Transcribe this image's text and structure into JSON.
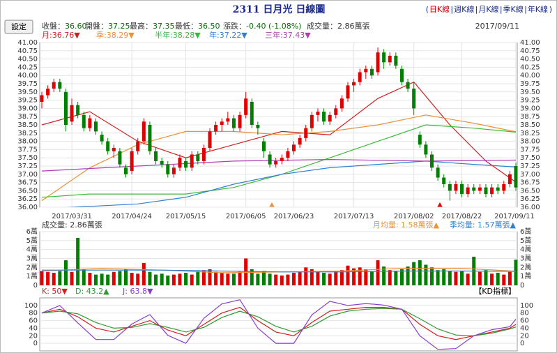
{
  "header": {
    "title": "2311 日月光 日線圖",
    "links": [
      "日K線",
      "週K線",
      "月K線",
      "季K線",
      "年K線"
    ],
    "button": "設定",
    "quote": [
      {
        "label": "收盤：",
        "value": "36.60"
      },
      {
        "label": "開盤：",
        "value": "37.25"
      },
      {
        "label": "最高：",
        "value": "37.35"
      },
      {
        "label": "最低：",
        "value": "36.50"
      },
      {
        "label": "漲跌：",
        "value": "-0.40 (-1.08%)"
      },
      {
        "label": "成交量：",
        "value": "2.86萬張"
      }
    ],
    "date": "2017/09/11"
  },
  "chart_data": [
    {
      "type": "candlestick",
      "up_color": "#e00000",
      "down_color": "#008000",
      "grid": true,
      "categories": [
        null,
        null,
        null,
        null,
        null,
        "2017/03/31",
        null,
        null,
        null,
        null,
        null,
        null,
        null,
        null,
        null,
        "2017/04/24",
        null,
        null,
        null,
        null,
        null,
        null,
        null,
        null,
        "2017/05/15",
        null,
        null,
        null,
        null,
        null,
        null,
        null,
        null,
        null,
        "2017/06/05",
        null,
        null,
        null,
        null,
        null,
        null,
        null,
        "2017/06/23",
        null,
        null,
        null,
        null,
        null,
        null,
        null,
        null,
        null,
        "2017/07/13",
        null,
        null,
        null,
        null,
        null,
        null,
        null,
        null,
        null,
        "2017/08/02",
        null,
        null,
        null,
        null,
        null,
        null,
        null,
        "2017/08/22",
        null,
        null,
        null,
        null,
        null,
        null,
        null,
        null,
        "2017/09/11"
      ],
      "candles": [
        [
          39.2,
          39.5,
          39.0,
          39.4
        ],
        [
          39.4,
          39.7,
          39.3,
          39.6
        ],
        [
          39.6,
          39.9,
          39.5,
          39.8
        ],
        [
          39.8,
          39.9,
          39.5,
          39.6
        ],
        [
          39.5,
          39.6,
          38.3,
          38.5
        ],
        [
          38.6,
          39.3,
          38.5,
          39.1
        ],
        [
          39.1,
          39.2,
          38.7,
          38.8
        ],
        [
          38.8,
          38.9,
          38.3,
          38.4
        ],
        [
          38.4,
          38.8,
          38.3,
          38.7
        ],
        [
          38.6,
          38.7,
          38.2,
          38.3
        ],
        [
          38.2,
          38.3,
          37.9,
          38.0
        ],
        [
          38.0,
          38.1,
          37.6,
          37.7
        ],
        [
          37.7,
          37.9,
          37.5,
          37.8
        ],
        [
          37.7,
          37.8,
          37.2,
          37.3
        ],
        [
          37.2,
          37.3,
          36.9,
          37.0
        ],
        [
          37.1,
          37.8,
          37.0,
          37.7
        ],
        [
          37.7,
          38.1,
          37.6,
          38.0
        ],
        [
          38.0,
          38.7,
          37.9,
          38.6
        ],
        [
          38.5,
          38.6,
          37.6,
          37.7
        ],
        [
          37.7,
          37.8,
          37.3,
          37.4
        ],
        [
          37.4,
          37.5,
          37.2,
          37.3
        ],
        [
          37.3,
          37.4,
          36.9,
          37.0
        ],
        [
          37.0,
          37.3,
          36.9,
          37.2
        ],
        [
          37.2,
          37.6,
          37.1,
          37.5
        ],
        [
          37.4,
          37.5,
          37.1,
          37.2
        ],
        [
          37.2,
          37.7,
          37.1,
          37.6
        ],
        [
          37.6,
          37.7,
          37.3,
          37.4
        ],
        [
          37.4,
          37.9,
          37.3,
          37.8
        ],
        [
          37.8,
          38.4,
          37.7,
          38.3
        ],
        [
          38.3,
          38.6,
          38.2,
          38.5
        ],
        [
          38.5,
          38.7,
          38.3,
          38.6
        ],
        [
          38.6,
          38.9,
          38.5,
          38.7
        ],
        [
          38.7,
          38.8,
          38.3,
          38.4
        ],
        [
          38.4,
          38.9,
          38.3,
          38.8
        ],
        [
          38.8,
          39.5,
          38.7,
          39.3
        ],
        [
          39.2,
          39.3,
          38.4,
          38.5
        ],
        [
          38.5,
          38.6,
          38.2,
          38.4
        ],
        [
          38.0,
          38.1,
          37.5,
          37.7
        ],
        [
          37.6,
          37.7,
          37.2,
          37.3
        ],
        [
          37.3,
          37.5,
          37.2,
          37.4
        ],
        [
          37.4,
          37.6,
          37.3,
          37.5
        ],
        [
          37.5,
          37.8,
          37.4,
          37.7
        ],
        [
          37.7,
          38.0,
          37.6,
          37.9
        ],
        [
          37.9,
          38.2,
          37.8,
          38.1
        ],
        [
          38.1,
          38.5,
          38.0,
          38.4
        ],
        [
          38.4,
          38.9,
          38.3,
          38.8
        ],
        [
          38.8,
          39.0,
          38.6,
          38.9
        ],
        [
          38.9,
          39.0,
          38.5,
          38.6
        ],
        [
          38.6,
          38.9,
          38.5,
          38.8
        ],
        [
          38.8,
          39.1,
          38.7,
          39.0
        ],
        [
          39.0,
          39.4,
          38.9,
          39.3
        ],
        [
          39.3,
          39.8,
          39.2,
          39.7
        ],
        [
          39.7,
          39.9,
          39.5,
          39.8
        ],
        [
          39.8,
          40.2,
          39.7,
          40.1
        ],
        [
          40.1,
          40.3,
          39.9,
          40.2
        ],
        [
          40.2,
          40.3,
          39.9,
          40.0
        ],
        [
          40.1,
          40.85,
          40.0,
          40.7
        ],
        [
          40.7,
          40.8,
          40.2,
          40.4
        ],
        [
          40.4,
          40.7,
          40.3,
          40.6
        ],
        [
          40.6,
          40.7,
          40.2,
          40.3
        ],
        [
          40.2,
          40.3,
          39.7,
          39.8
        ],
        [
          39.8,
          39.9,
          39.5,
          39.6
        ],
        [
          39.6,
          39.8,
          38.8,
          39.0
        ],
        [
          38.2,
          38.3,
          37.8,
          37.9
        ],
        [
          37.9,
          38.0,
          37.5,
          37.6
        ],
        [
          37.6,
          37.7,
          37.1,
          37.2
        ],
        [
          37.2,
          37.3,
          36.8,
          36.9
        ],
        [
          36.9,
          37.0,
          36.6,
          36.7
        ],
        [
          36.7,
          36.8,
          36.2,
          36.5
        ],
        [
          36.5,
          36.8,
          36.4,
          36.7
        ],
        [
          36.7,
          36.8,
          36.3,
          36.4
        ],
        [
          36.4,
          36.7,
          36.3,
          36.6
        ],
        [
          36.6,
          36.7,
          36.4,
          36.5
        ],
        [
          36.5,
          36.7,
          36.4,
          36.6
        ],
        [
          36.6,
          36.7,
          36.3,
          36.4
        ],
        [
          36.4,
          36.7,
          36.3,
          36.6
        ],
        [
          36.6,
          36.7,
          36.4,
          36.5
        ],
        [
          36.5,
          36.8,
          36.4,
          36.7
        ],
        [
          36.7,
          37.1,
          36.6,
          37.0
        ],
        [
          37.25,
          37.35,
          36.5,
          36.6
        ]
      ],
      "series": [
        {
          "name": "月",
          "legend": "月:36.76▼",
          "color": "#d02020",
          "x": [
            0,
            8,
            16,
            24,
            32,
            40,
            48,
            56,
            62,
            68,
            74,
            79
          ],
          "values": [
            38.5,
            38.9,
            38.0,
            37.5,
            37.9,
            38.3,
            38.2,
            39.3,
            39.8,
            38.5,
            37.4,
            36.76
          ]
        },
        {
          "name": "季",
          "legend": "季:38.29▼",
          "color": "#e8923a",
          "x": [
            0,
            8,
            16,
            24,
            32,
            40,
            48,
            56,
            64,
            72,
            79
          ],
          "values": [
            36.2,
            37.2,
            37.9,
            38.3,
            38.3,
            38.2,
            38.3,
            38.5,
            38.8,
            38.55,
            38.29
          ]
        },
        {
          "name": "半年",
          "legend": "半年:38.28▼",
          "color": "#3cb83c",
          "x": [
            0,
            8,
            16,
            24,
            32,
            40,
            48,
            56,
            64,
            72,
            79
          ],
          "values": [
            36.3,
            36.4,
            36.4,
            36.4,
            36.6,
            37.0,
            37.5,
            38.0,
            38.5,
            38.4,
            38.28
          ]
        },
        {
          "name": "年",
          "legend": "年:37.22▼",
          "color": "#3080d0",
          "x": [
            0,
            16,
            24,
            32,
            40,
            48,
            56,
            64,
            72,
            79
          ],
          "values": [
            35.95,
            36.1,
            36.3,
            36.7,
            37.0,
            37.2,
            37.3,
            37.4,
            37.3,
            37.22
          ]
        },
        {
          "name": "三年",
          "legend": "三年:37.43▼",
          "color": "#b040b0",
          "x": [
            0,
            16,
            32,
            48,
            64,
            79
          ],
          "values": [
            37.1,
            37.25,
            37.4,
            37.45,
            37.4,
            37.43
          ]
        }
      ],
      "ylim": [
        36,
        41
      ],
      "yticks": [
        {
          "value": 36,
          "label": "36.00"
        },
        {
          "value": 36.25,
          "label": "36.25"
        },
        {
          "value": 36.5,
          "label": "36.50"
        },
        {
          "value": 36.75,
          "label": "36.75"
        },
        {
          "value": 37,
          "label": "37.00"
        },
        {
          "value": 37.25,
          "label": "37.25"
        },
        {
          "value": 37.5,
          "label": "37.50"
        },
        {
          "value": 37.75,
          "label": "37.75"
        },
        {
          "value": 38,
          "label": "38.00"
        },
        {
          "value": 38.25,
          "label": "38.25"
        },
        {
          "value": 38.5,
          "label": "38.50"
        },
        {
          "value": 38.75,
          "label": "38.75"
        },
        {
          "value": 39,
          "label": "39.00"
        },
        {
          "value": 39.25,
          "label": "39.25"
        },
        {
          "value": 39.5,
          "label": "39.50"
        },
        {
          "value": 39.75,
          "label": "39.75"
        },
        {
          "value": 40,
          "label": "40.00"
        },
        {
          "value": 40.25,
          "label": "40.25"
        },
        {
          "value": 40.5,
          "label": "40.50"
        },
        {
          "value": 40.75,
          "label": "40.75"
        },
        {
          "value": 41,
          "label": "41.00"
        }
      ]
    },
    {
      "type": "bar",
      "label": "成交量: 2.86萬張",
      "values": [
        1.6,
        1.5,
        1.4,
        1.6,
        2.8,
        1.5,
        5.3,
        1.8,
        1.4,
        1.2,
        1.3,
        1.2,
        1.5,
        1.6,
        1.8,
        1.4,
        1.3,
        2.5,
        1.5,
        1.2,
        1.3,
        1.1,
        1.2,
        1.3,
        1.4,
        1.2,
        1.6,
        1.7,
        1.8,
        1.5,
        1.4,
        1.3,
        1.3,
        1.5,
        3.0,
        1.8,
        1.3,
        1.6,
        1.3,
        1.2,
        1.1,
        1.2,
        1.4,
        1.5,
        2.0,
        1.8,
        1.5,
        1.4,
        1.3,
        1.6,
        1.7,
        2.2,
        1.9,
        2.0,
        1.8,
        1.6,
        2.8,
        2.1,
        1.7,
        1.6,
        1.8,
        2.1,
        2.6,
        2.8,
        2.3,
        2.0,
        1.7,
        1.8,
        1.6,
        1.5,
        1.6,
        1.3,
        3.2,
        1.5,
        1.7,
        1.3,
        1.4,
        1.2,
        1.5,
        2.86
      ],
      "series": [
        {
          "name": "月均量",
          "legend": "月均量: 1.58萬張▲",
          "color": "#e8923a",
          "x": [
            0,
            10,
            20,
            30,
            40,
            50,
            60,
            70,
            79
          ],
          "values": [
            1.6,
            1.9,
            1.7,
            1.4,
            1.5,
            1.6,
            1.9,
            1.9,
            1.58
          ]
        },
        {
          "name": "季均量",
          "legend": "季均量: 1.57萬張▲",
          "color": "#3080d0",
          "x": [
            0,
            10,
            20,
            30,
            40,
            50,
            60,
            70,
            79
          ],
          "values": [
            1.7,
            1.7,
            1.7,
            1.6,
            1.5,
            1.5,
            1.6,
            1.6,
            1.57
          ]
        }
      ],
      "ylim": [
        0,
        6
      ],
      "yticks": [
        0,
        {
          "value": 1,
          "label": "1萬"
        },
        {
          "value": 2,
          "label": "2萬"
        },
        {
          "value": 3,
          "label": "3萬"
        },
        {
          "value": 4,
          "label": "4萬"
        },
        {
          "value": 5,
          "label": "5萬"
        },
        {
          "value": 6,
          "label": "6萬"
        }
      ]
    },
    {
      "type": "line",
      "indicator": "【KD指標】",
      "series": [
        {
          "name": "K",
          "legend": "K: 50▼",
          "color": "#d02020",
          "x": [
            0,
            3,
            6,
            9,
            12,
            15,
            18,
            21,
            24,
            27,
            30,
            33,
            36,
            39,
            42,
            45,
            48,
            51,
            54,
            57,
            60,
            63,
            66,
            69,
            72,
            75,
            78,
            79
          ],
          "values": [
            80,
            90,
            70,
            40,
            30,
            45,
            60,
            35,
            20,
            50,
            80,
            95,
            60,
            30,
            20,
            55,
            85,
            90,
            95,
            95,
            90,
            50,
            20,
            10,
            20,
            30,
            40,
            50
          ]
        },
        {
          "name": "D",
          "legend": "D: 43.2▲",
          "color": "#2e9a2e",
          "x": [
            0,
            3,
            6,
            9,
            12,
            15,
            18,
            21,
            24,
            27,
            30,
            33,
            36,
            39,
            42,
            45,
            48,
            51,
            54,
            57,
            60,
            63,
            66,
            69,
            72,
            75,
            78,
            79
          ],
          "values": [
            80,
            85,
            78,
            55,
            40,
            42,
            52,
            42,
            30,
            42,
            68,
            85,
            70,
            45,
            30,
            45,
            72,
            85,
            90,
            92,
            90,
            65,
            38,
            22,
            20,
            27,
            38,
            43.2
          ]
        },
        {
          "name": "J",
          "legend": "J: 63.8▼",
          "color": "#8a3cc8",
          "x": [
            0,
            3,
            6,
            9,
            12,
            15,
            18,
            21,
            24,
            27,
            30,
            33,
            36,
            39,
            42,
            45,
            48,
            51,
            54,
            57,
            60,
            63,
            66,
            69,
            72,
            75,
            78,
            79
          ],
          "values": [
            80,
            100,
            54,
            10,
            10,
            51,
            76,
            21,
            0,
            66,
            104,
            115,
            40,
            0,
            0,
            75,
            111,
            100,
            105,
            101,
            90,
            20,
            -16,
            -14,
            20,
            36,
            44,
            63.8
          ]
        }
      ],
      "ylim": [
        -20,
        120
      ],
      "yticks": [
        0,
        20,
        40,
        60,
        80,
        100
      ]
    }
  ]
}
